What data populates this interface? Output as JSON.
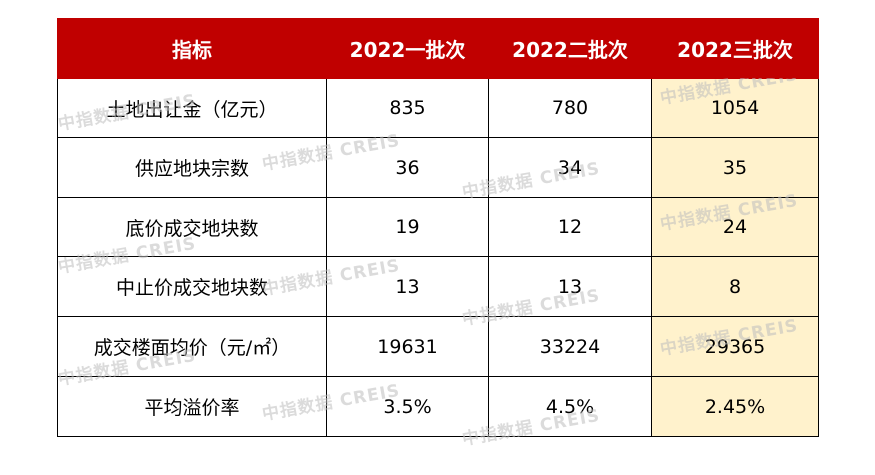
{
  "watermark": "中指数据 CREIS",
  "colors": {
    "header_bg": "#C00000",
    "header_text": "#FFFFFF",
    "highlight_bg": "#FFF2CC",
    "border": "#000000",
    "watermark": "#BFBFBF"
  },
  "chart_data": {
    "type": "table",
    "columns": [
      "指标",
      "2022一批次",
      "2022二批次",
      "2022三批次"
    ],
    "rows": [
      {
        "label": "土地出让金（亿元）",
        "values": [
          "835",
          "780",
          "1054"
        ]
      },
      {
        "label": "供应地块宗数",
        "values": [
          "36",
          "34",
          "35"
        ]
      },
      {
        "label": "底价成交地块数",
        "values": [
          "19",
          "12",
          "24"
        ]
      },
      {
        "label": "中止价成交地块数",
        "values": [
          "13",
          "13",
          "8"
        ]
      },
      {
        "label": "成交楼面均价（元/㎡）",
        "values": [
          "19631",
          "33224",
          "29365"
        ]
      },
      {
        "label": "平均溢价率",
        "values": [
          "3.5%",
          "4.5%",
          "2.45%"
        ]
      }
    ]
  }
}
